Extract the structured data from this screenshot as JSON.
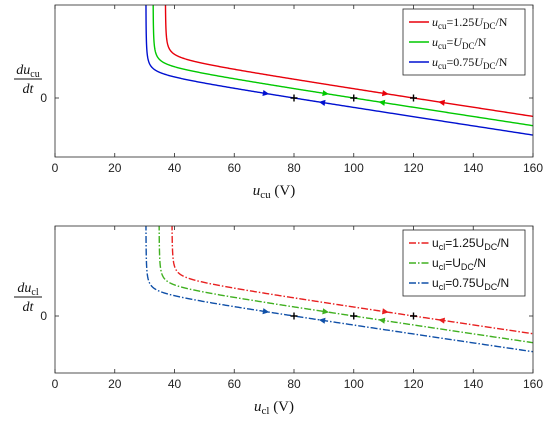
{
  "chart_data": [
    {
      "type": "line",
      "title": "",
      "xlabel": {
        "base": "u",
        "sub": "cu",
        "unit": " (V)"
      },
      "ylabel": {
        "num_base": "du",
        "num_sub": "cu",
        "den": "dt"
      },
      "xlim": [
        0,
        160
      ],
      "x_ticks": [
        "0",
        "20",
        "40",
        "60",
        "80",
        "100",
        "120",
        "140",
        "160"
      ],
      "y_ticks": [
        "0"
      ],
      "grid": false,
      "legend_position": "top-right",
      "style": "solid",
      "series": [
        {
          "name": "u_cu=1.25U_DC/N",
          "legend": {
            "base": "u",
            "sub": "cu",
            "mid": "=1.25",
            "base2": "U",
            "sub2": "DC",
            "tail": "/N"
          },
          "color": "#e8000b",
          "equilibrium_x": 120,
          "u_min": 36.9,
          "x": [
            36.9,
            40,
            60,
            80,
            100,
            120,
            140,
            160
          ],
          "y": [
            0.0,
            0.0,
            0.0,
            0.0,
            0.0,
            0.0,
            0.0,
            0.0
          ]
        },
        {
          "name": "u_cu=U_DC/N",
          "legend": {
            "base": "u",
            "sub": "cu",
            "mid": "=",
            "base2": "U",
            "sub2": "DC",
            "tail": "/N"
          },
          "color": "#00c800",
          "equilibrium_x": 100,
          "u_min": 32.8,
          "x": [
            32.8,
            40,
            60,
            80,
            100,
            120,
            140,
            160
          ],
          "y": [
            0.0,
            0.0,
            0.0,
            0.0,
            0.0,
            0.0,
            0.0,
            0.0
          ]
        },
        {
          "name": "u_cu=0.75U_DC/N",
          "legend": {
            "base": "u",
            "sub": "cu",
            "mid": "=0.75",
            "base2": "U",
            "sub2": "DC",
            "tail": "/N"
          },
          "color": "#0010d0",
          "equilibrium_x": 80,
          "u_min": 30.4,
          "x": [
            30.4,
            40,
            60,
            80,
            100,
            120,
            140,
            160
          ],
          "y": [
            0.0,
            0.0,
            0.0,
            0.0,
            0.0,
            0.0,
            0.0,
            0.0
          ]
        }
      ]
    },
    {
      "type": "line",
      "title": "",
      "xlabel": {
        "base": "u",
        "sub": "cl",
        "unit": " (V)"
      },
      "ylabel": {
        "num_base": "du",
        "num_sub": "cl",
        "den": "dt"
      },
      "xlim": [
        0,
        160
      ],
      "x_ticks": [
        "0",
        "20",
        "40",
        "60",
        "80",
        "100",
        "120",
        "140",
        "160"
      ],
      "y_ticks": [
        "0"
      ],
      "grid": false,
      "legend_position": "top-right",
      "style": "dash-dot",
      "series": [
        {
          "name": "u_cl=1.25U_DC/N",
          "legend": {
            "base": "u",
            "sub": "cl",
            "mid": "=1.25U",
            "base2": "",
            "sub2": "DC",
            "tail": "/N"
          },
          "color": "#e82020",
          "equilibrium_x": 120,
          "u_min": 39.1,
          "x": [
            39.1,
            40,
            60,
            80,
            100,
            120,
            140,
            160
          ],
          "y": [
            0.0,
            0.0,
            0.0,
            0.0,
            0.0,
            0.0,
            0.0,
            0.0
          ]
        },
        {
          "name": "u_cl=U_DC/N",
          "legend": {
            "base": "u",
            "sub": "cl",
            "mid": "=U",
            "base2": "",
            "sub2": "DC",
            "tail": "/N"
          },
          "color": "#40b020",
          "equilibrium_x": 100,
          "u_min": 34.8,
          "x": [
            34.8,
            40,
            60,
            80,
            100,
            120,
            140,
            160
          ],
          "y": [
            0.0,
            0.0,
            0.0,
            0.0,
            0.0,
            0.0,
            0.0,
            0.0
          ]
        },
        {
          "name": "u_cl=0.75U_DC/N",
          "legend": {
            "base": "u",
            "sub": "cl",
            "mid": "=0.75U",
            "base2": "",
            "sub2": "DC",
            "tail": "/N"
          },
          "color": "#1050a8",
          "equilibrium_x": 80,
          "u_min": 30.4,
          "x": [
            30.4,
            40,
            60,
            80,
            100,
            120,
            140,
            160
          ],
          "y": [
            0.0,
            0.0,
            0.0,
            0.0,
            0.0,
            0.0,
            0.0,
            0.0
          ]
        }
      ]
    }
  ]
}
